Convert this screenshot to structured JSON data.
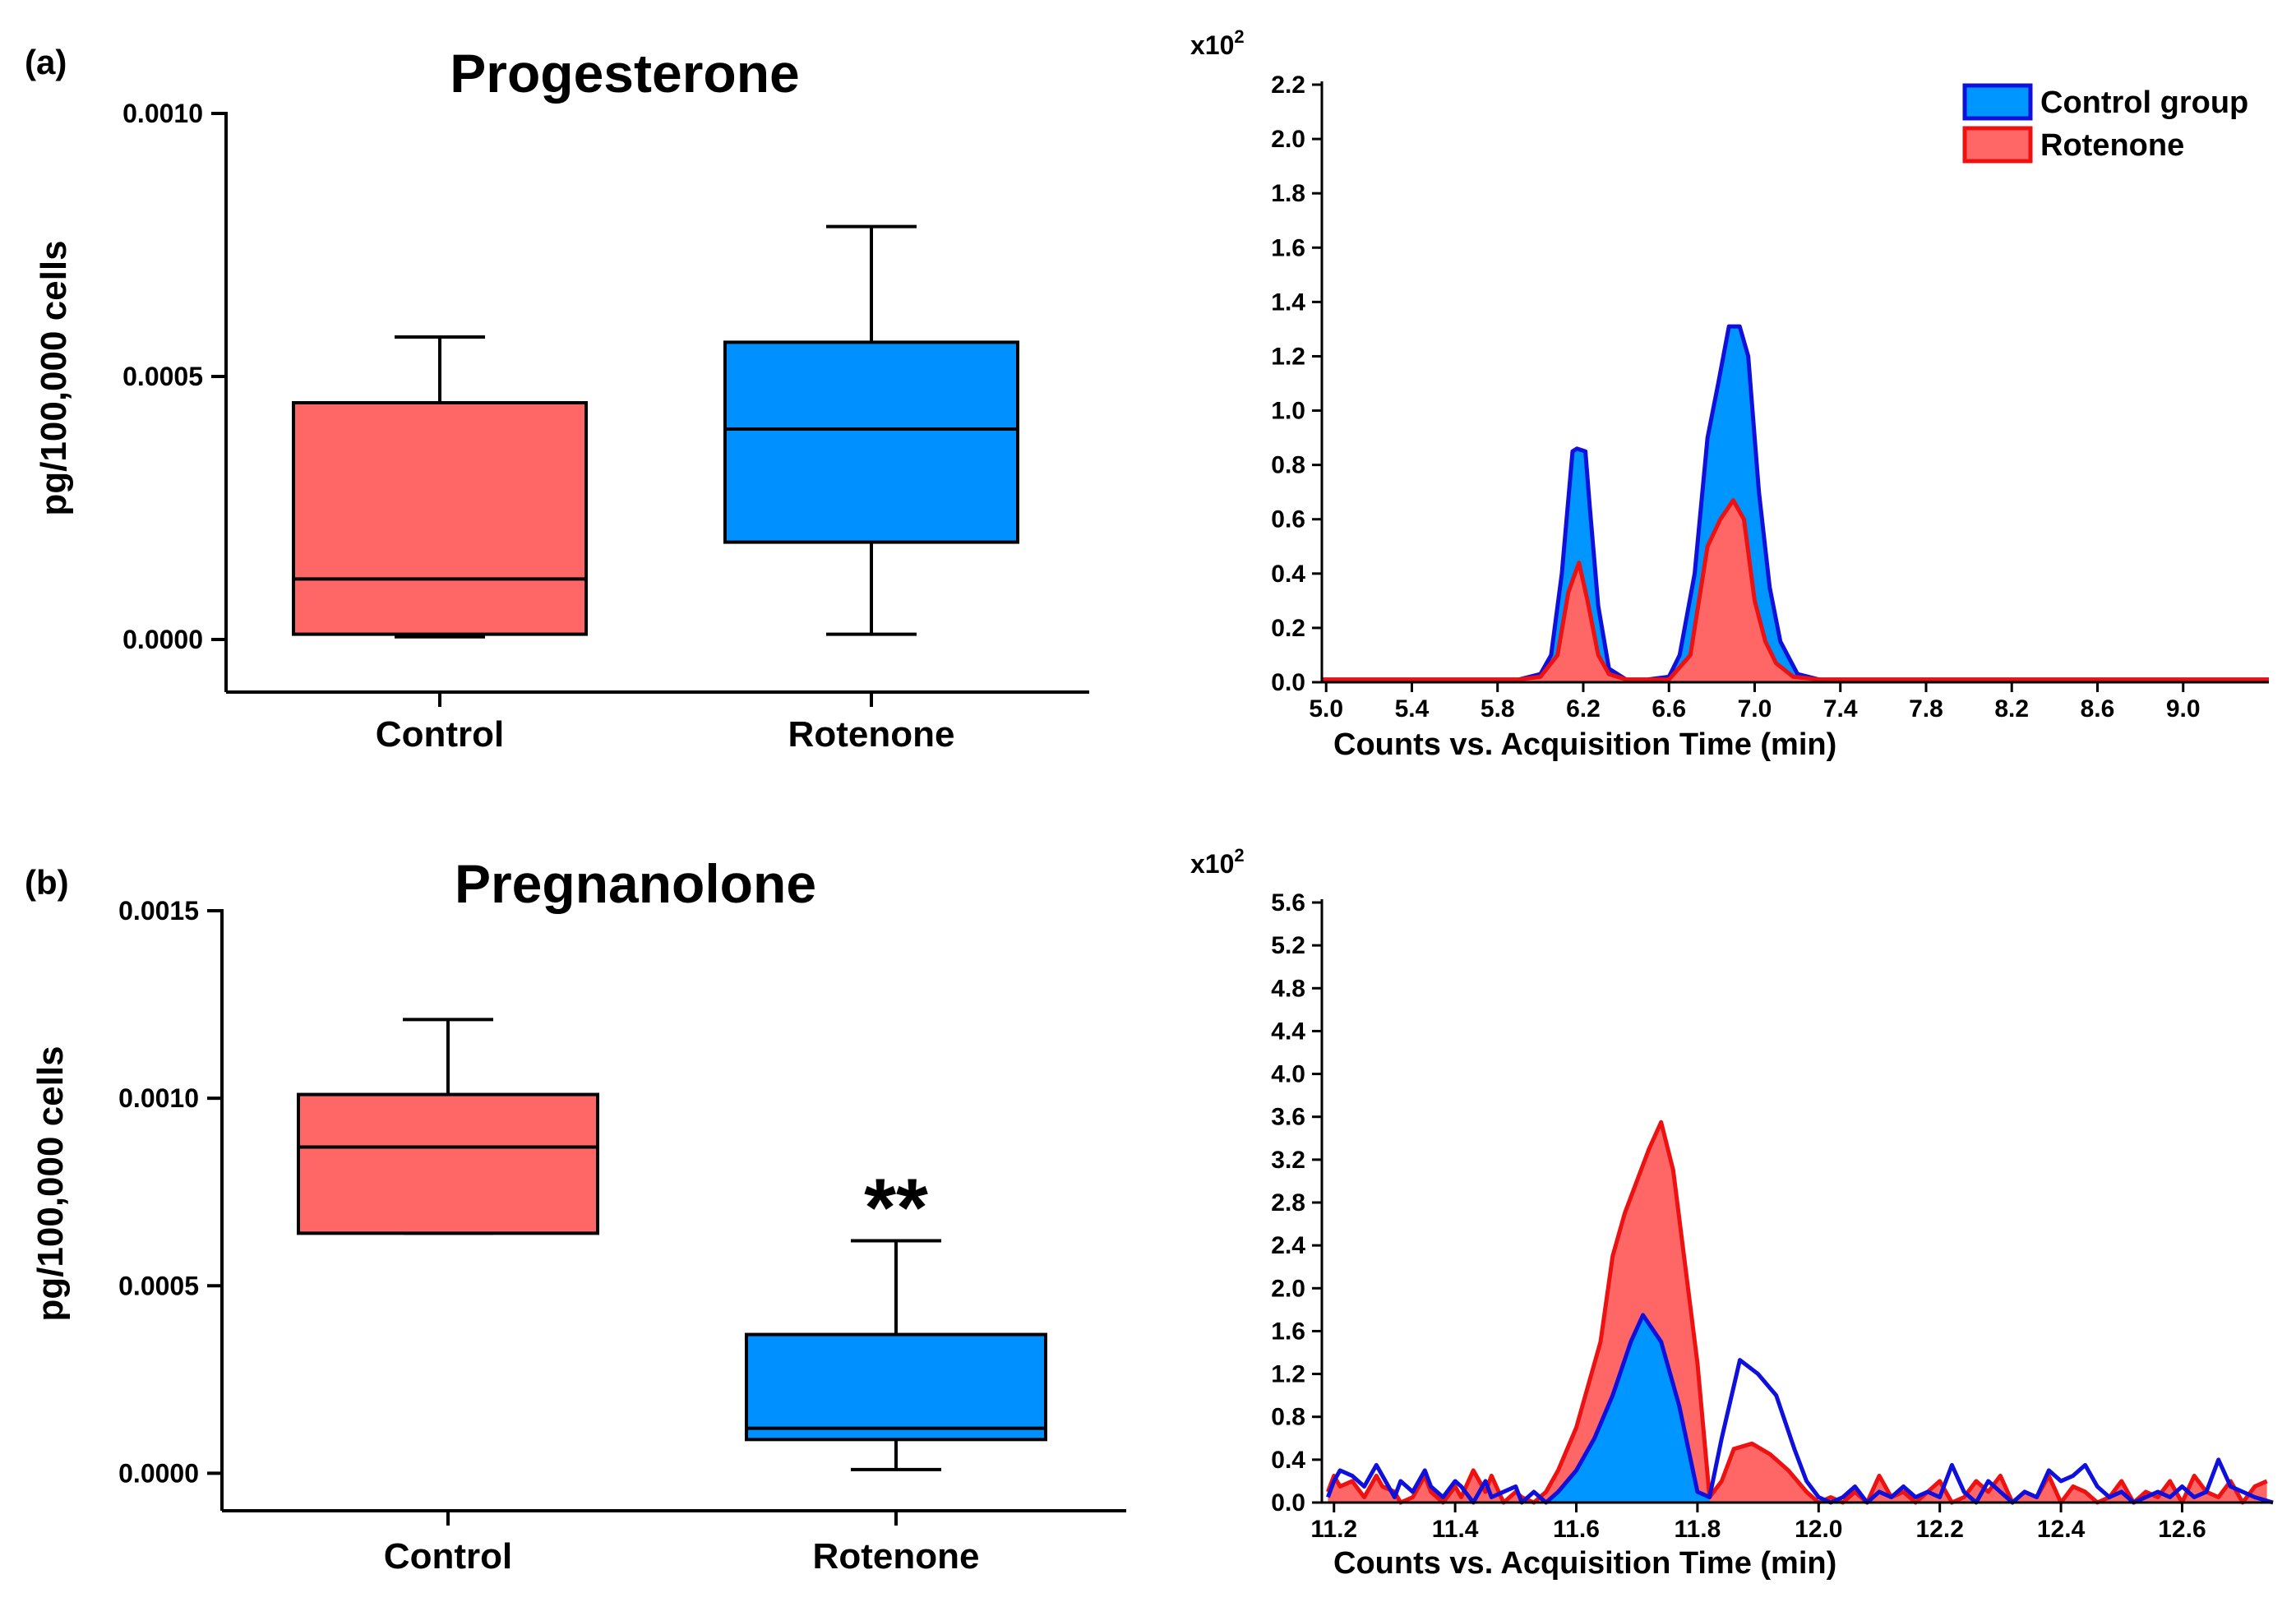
{
  "chart_data": [
    {
      "id": "box-a",
      "type": "box",
      "panel_label": "(a)",
      "title": "Progesterone",
      "ylabel": "pg/100,000 cells",
      "ylim": [
        -0.0001,
        0.001
      ],
      "ticks": [
        0.0,
        0.0005,
        0.001
      ],
      "tick_labels": [
        "0.0000",
        "0.0005",
        "0.0010"
      ],
      "categories": [
        "Control",
        "Rotenone"
      ],
      "boxes": [
        {
          "label": "Control",
          "min": 5e-06,
          "q1": 1e-05,
          "median": 0.000115,
          "q3": 0.00045,
          "max": 0.000575,
          "color": "#ff6666",
          "significance": ""
        },
        {
          "label": "Rotenone",
          "min": 1e-05,
          "q1": 0.000185,
          "median": 0.0004,
          "q3": 0.000565,
          "max": 0.000785,
          "color": "#0090ff",
          "significance": ""
        }
      ]
    },
    {
      "id": "box-b",
      "type": "box",
      "panel_label": "(b)",
      "title": "Pregnanolone",
      "ylabel": "pg/100,000 cells",
      "ylim": [
        -0.0001,
        0.0015
      ],
      "ticks": [
        0.0,
        0.0005,
        0.001,
        0.0015
      ],
      "tick_labels": [
        "0.0000",
        "0.0005",
        "0.0010",
        "0.0015"
      ],
      "categories": [
        "Control",
        "Rotenone"
      ],
      "boxes": [
        {
          "label": "Control",
          "min": 0.00064,
          "q1": 0.00064,
          "median": 0.00087,
          "q3": 0.00101,
          "max": 0.00121,
          "color": "#ff6666",
          "significance": ""
        },
        {
          "label": "Rotenone",
          "min": 1e-05,
          "q1": 9e-05,
          "median": 0.00012,
          "q3": 0.00037,
          "max": 0.00062,
          "color": "#0090ff",
          "significance": "**"
        }
      ]
    },
    {
      "id": "chrom-a",
      "type": "area",
      "multiplier_base": "x10",
      "multiplier_exp": "2",
      "xlabel": "Counts vs. Acquisition Time (min)",
      "xlim": [
        4.98,
        9.4
      ],
      "ylim": [
        0,
        2.2
      ],
      "x_ticks": [
        5.0,
        5.4,
        5.8,
        6.2,
        6.6,
        7.0,
        7.4,
        7.8,
        8.2,
        8.6,
        9.0
      ],
      "x_tick_labels": [
        "5.0",
        "5.4",
        "5.8",
        "6.2",
        "6.6",
        "7.0",
        "7.4",
        "7.8",
        "8.2",
        "8.6",
        "9.0"
      ],
      "y_ticks": [
        0,
        0.2,
        0.4,
        0.6,
        0.8,
        1.0,
        1.2,
        1.4,
        1.6,
        1.8,
        2.0,
        2.2
      ],
      "y_tick_labels": [
        "0.0",
        "0.2",
        "0.4",
        "0.6",
        "0.8",
        "1.0",
        "1.2",
        "1.4",
        "1.6",
        "1.8",
        "2.0",
        "2.2"
      ],
      "legend": [
        {
          "name": "Control group",
          "fill": "#0096ff",
          "stroke": "#1010dd"
        },
        {
          "name": "Rotenone",
          "fill": "#ff6666",
          "stroke": "#ee1111"
        }
      ],
      "series": [
        {
          "name": "Control group",
          "fill": "#0096ff",
          "stroke": "#1010dd",
          "x": [
            4.98,
            5.5,
            5.9,
            6.0,
            6.05,
            6.1,
            6.15,
            6.17,
            6.21,
            6.23,
            6.27,
            6.32,
            6.4,
            6.5,
            6.6,
            6.65,
            6.72,
            6.78,
            6.83,
            6.88,
            6.93,
            6.97,
            7.02,
            7.07,
            7.12,
            7.2,
            7.3,
            7.4,
            9.4
          ],
          "y": [
            0.01,
            0.01,
            0.01,
            0.03,
            0.1,
            0.4,
            0.85,
            0.86,
            0.85,
            0.65,
            0.28,
            0.05,
            0.01,
            0.01,
            0.02,
            0.1,
            0.4,
            0.9,
            1.1,
            1.31,
            1.31,
            1.2,
            0.7,
            0.35,
            0.15,
            0.03,
            0.01,
            0.01,
            0.01
          ]
        },
        {
          "name": "Rotenone",
          "fill": "#ff6666",
          "stroke": "#ee1111",
          "x": [
            4.98,
            5.5,
            5.9,
            6.0,
            6.08,
            6.13,
            6.18,
            6.22,
            6.27,
            6.32,
            6.4,
            6.5,
            6.6,
            6.7,
            6.78,
            6.84,
            6.9,
            6.95,
            7.0,
            7.05,
            7.1,
            7.18,
            7.3,
            8.0,
            9.4
          ],
          "y": [
            0.01,
            0.01,
            0.01,
            0.02,
            0.1,
            0.33,
            0.44,
            0.3,
            0.1,
            0.03,
            0.01,
            0.01,
            0.01,
            0.1,
            0.5,
            0.6,
            0.67,
            0.6,
            0.3,
            0.15,
            0.07,
            0.02,
            0.01,
            0.01,
            0.01
          ]
        }
      ]
    },
    {
      "id": "chrom-b",
      "type": "area",
      "multiplier_base": "x10",
      "multiplier_exp": "2",
      "xlabel": "Counts vs. Acquisition Time (min)",
      "xlim": [
        11.18,
        12.75
      ],
      "ylim": [
        0,
        5.6
      ],
      "x_ticks": [
        11.2,
        11.4,
        11.6,
        11.8,
        12.0,
        12.2,
        12.4,
        12.6
      ],
      "x_tick_labels": [
        "11.2",
        "11.4",
        "11.6",
        "11.8",
        "12.0",
        "12.2",
        "12.4",
        "12.6"
      ],
      "y_ticks": [
        0,
        0.4,
        0.8,
        1.2,
        1.6,
        2.0,
        2.4,
        2.8,
        3.2,
        3.6,
        4.0,
        4.4,
        4.8,
        5.2,
        5.6
      ],
      "y_tick_labels": [
        "0.0",
        "0.4",
        "0.8",
        "1.2",
        "1.6",
        "2.0",
        "2.4",
        "2.8",
        "3.2",
        "3.6",
        "4.0",
        "4.4",
        "4.8",
        "5.2",
        "5.6"
      ],
      "fill_range": [
        11.54,
        11.82
      ],
      "series": [
        {
          "name": "Control group",
          "fill": "#0096ff",
          "stroke": "#1010dd",
          "x": [
            11.19,
            11.2,
            11.21,
            11.23,
            11.25,
            11.27,
            11.28,
            11.3,
            11.31,
            11.33,
            11.35,
            11.36,
            11.38,
            11.4,
            11.41,
            11.43,
            11.45,
            11.46,
            11.48,
            11.5,
            11.51,
            11.53,
            11.55,
            11.57,
            11.6,
            11.63,
            11.66,
            11.69,
            11.71,
            11.74,
            11.77,
            11.8,
            11.82,
            11.84,
            11.87,
            11.9,
            11.93,
            11.96,
            11.98,
            12.0,
            12.02,
            12.04,
            12.06,
            12.08,
            12.1,
            12.12,
            12.14,
            12.16,
            12.18,
            12.2,
            12.22,
            12.24,
            12.26,
            12.28,
            12.3,
            12.32,
            12.34,
            12.36,
            12.38,
            12.4,
            12.42,
            12.44,
            12.46,
            12.48,
            12.5,
            12.52,
            12.54,
            12.56,
            12.58,
            12.6,
            12.62,
            12.64,
            12.66,
            12.68,
            12.7,
            12.72,
            12.75
          ],
          "y": [
            0.05,
            0.2,
            0.3,
            0.25,
            0.15,
            0.35,
            0.25,
            0.05,
            0.2,
            0.1,
            0.3,
            0.15,
            0.05,
            0.2,
            0.15,
            0.0,
            0.2,
            0.05,
            0.1,
            0.15,
            0.0,
            0.1,
            0.0,
            0.1,
            0.3,
            0.6,
            1.0,
            1.5,
            1.75,
            1.5,
            0.9,
            0.1,
            0.05,
            0.6,
            1.33,
            1.2,
            1.0,
            0.5,
            0.2,
            0.05,
            0.0,
            0.05,
            0.15,
            0.0,
            0.1,
            0.05,
            0.15,
            0.05,
            0.1,
            0.05,
            0.35,
            0.1,
            0.0,
            0.2,
            0.1,
            0.0,
            0.1,
            0.05,
            0.3,
            0.2,
            0.25,
            0.35,
            0.15,
            0.05,
            0.1,
            0.0,
            0.05,
            0.1,
            0.05,
            0.15,
            0.05,
            0.1,
            0.4,
            0.15,
            0.1,
            0.05,
            0.0
          ]
        },
        {
          "name": "Rotenone",
          "fill": "#ff6666",
          "stroke": "#ee1111",
          "x": [
            11.19,
            11.2,
            11.21,
            11.23,
            11.25,
            11.27,
            11.28,
            11.3,
            11.31,
            11.33,
            11.35,
            11.36,
            11.38,
            11.4,
            11.41,
            11.43,
            11.45,
            11.46,
            11.48,
            11.5,
            11.51,
            11.53,
            11.55,
            11.57,
            11.6,
            11.62,
            11.64,
            11.66,
            11.68,
            11.7,
            11.72,
            11.74,
            11.76,
            11.78,
            11.8,
            11.82,
            11.84,
            11.86,
            11.89,
            11.92,
            11.95,
            11.98,
            12.0,
            12.02,
            12.04,
            12.06,
            12.08,
            12.1,
            12.12,
            12.14,
            12.16,
            12.18,
            12.2,
            12.22,
            12.24,
            12.26,
            12.28,
            12.3,
            12.32,
            12.34,
            12.36,
            12.38,
            12.4,
            12.42,
            12.44,
            12.46,
            12.48,
            12.5,
            12.52,
            12.54,
            12.56,
            12.58,
            12.6,
            12.62,
            12.64,
            12.66,
            12.68,
            12.7,
            12.72,
            12.74
          ],
          "y": [
            0.1,
            0.25,
            0.15,
            0.2,
            0.05,
            0.25,
            0.15,
            0.1,
            0.0,
            0.05,
            0.25,
            0.1,
            0.0,
            0.15,
            0.05,
            0.3,
            0.1,
            0.25,
            0.0,
            0.1,
            0.05,
            0.0,
            0.1,
            0.3,
            0.7,
            1.1,
            1.5,
            2.3,
            2.7,
            3.0,
            3.3,
            3.55,
            3.1,
            2.2,
            1.3,
            0.05,
            0.2,
            0.5,
            0.55,
            0.45,
            0.3,
            0.1,
            0.0,
            0.05,
            0.0,
            0.1,
            0.0,
            0.25,
            0.05,
            0.1,
            0.0,
            0.1,
            0.2,
            0.0,
            0.05,
            0.2,
            0.1,
            0.25,
            0.0,
            0.1,
            0.05,
            0.25,
            0.0,
            0.15,
            0.1,
            0.0,
            0.05,
            0.2,
            0.0,
            0.1,
            0.05,
            0.2,
            0.0,
            0.25,
            0.1,
            0.05,
            0.2,
            0.0,
            0.15,
            0.2
          ]
        }
      ]
    }
  ]
}
